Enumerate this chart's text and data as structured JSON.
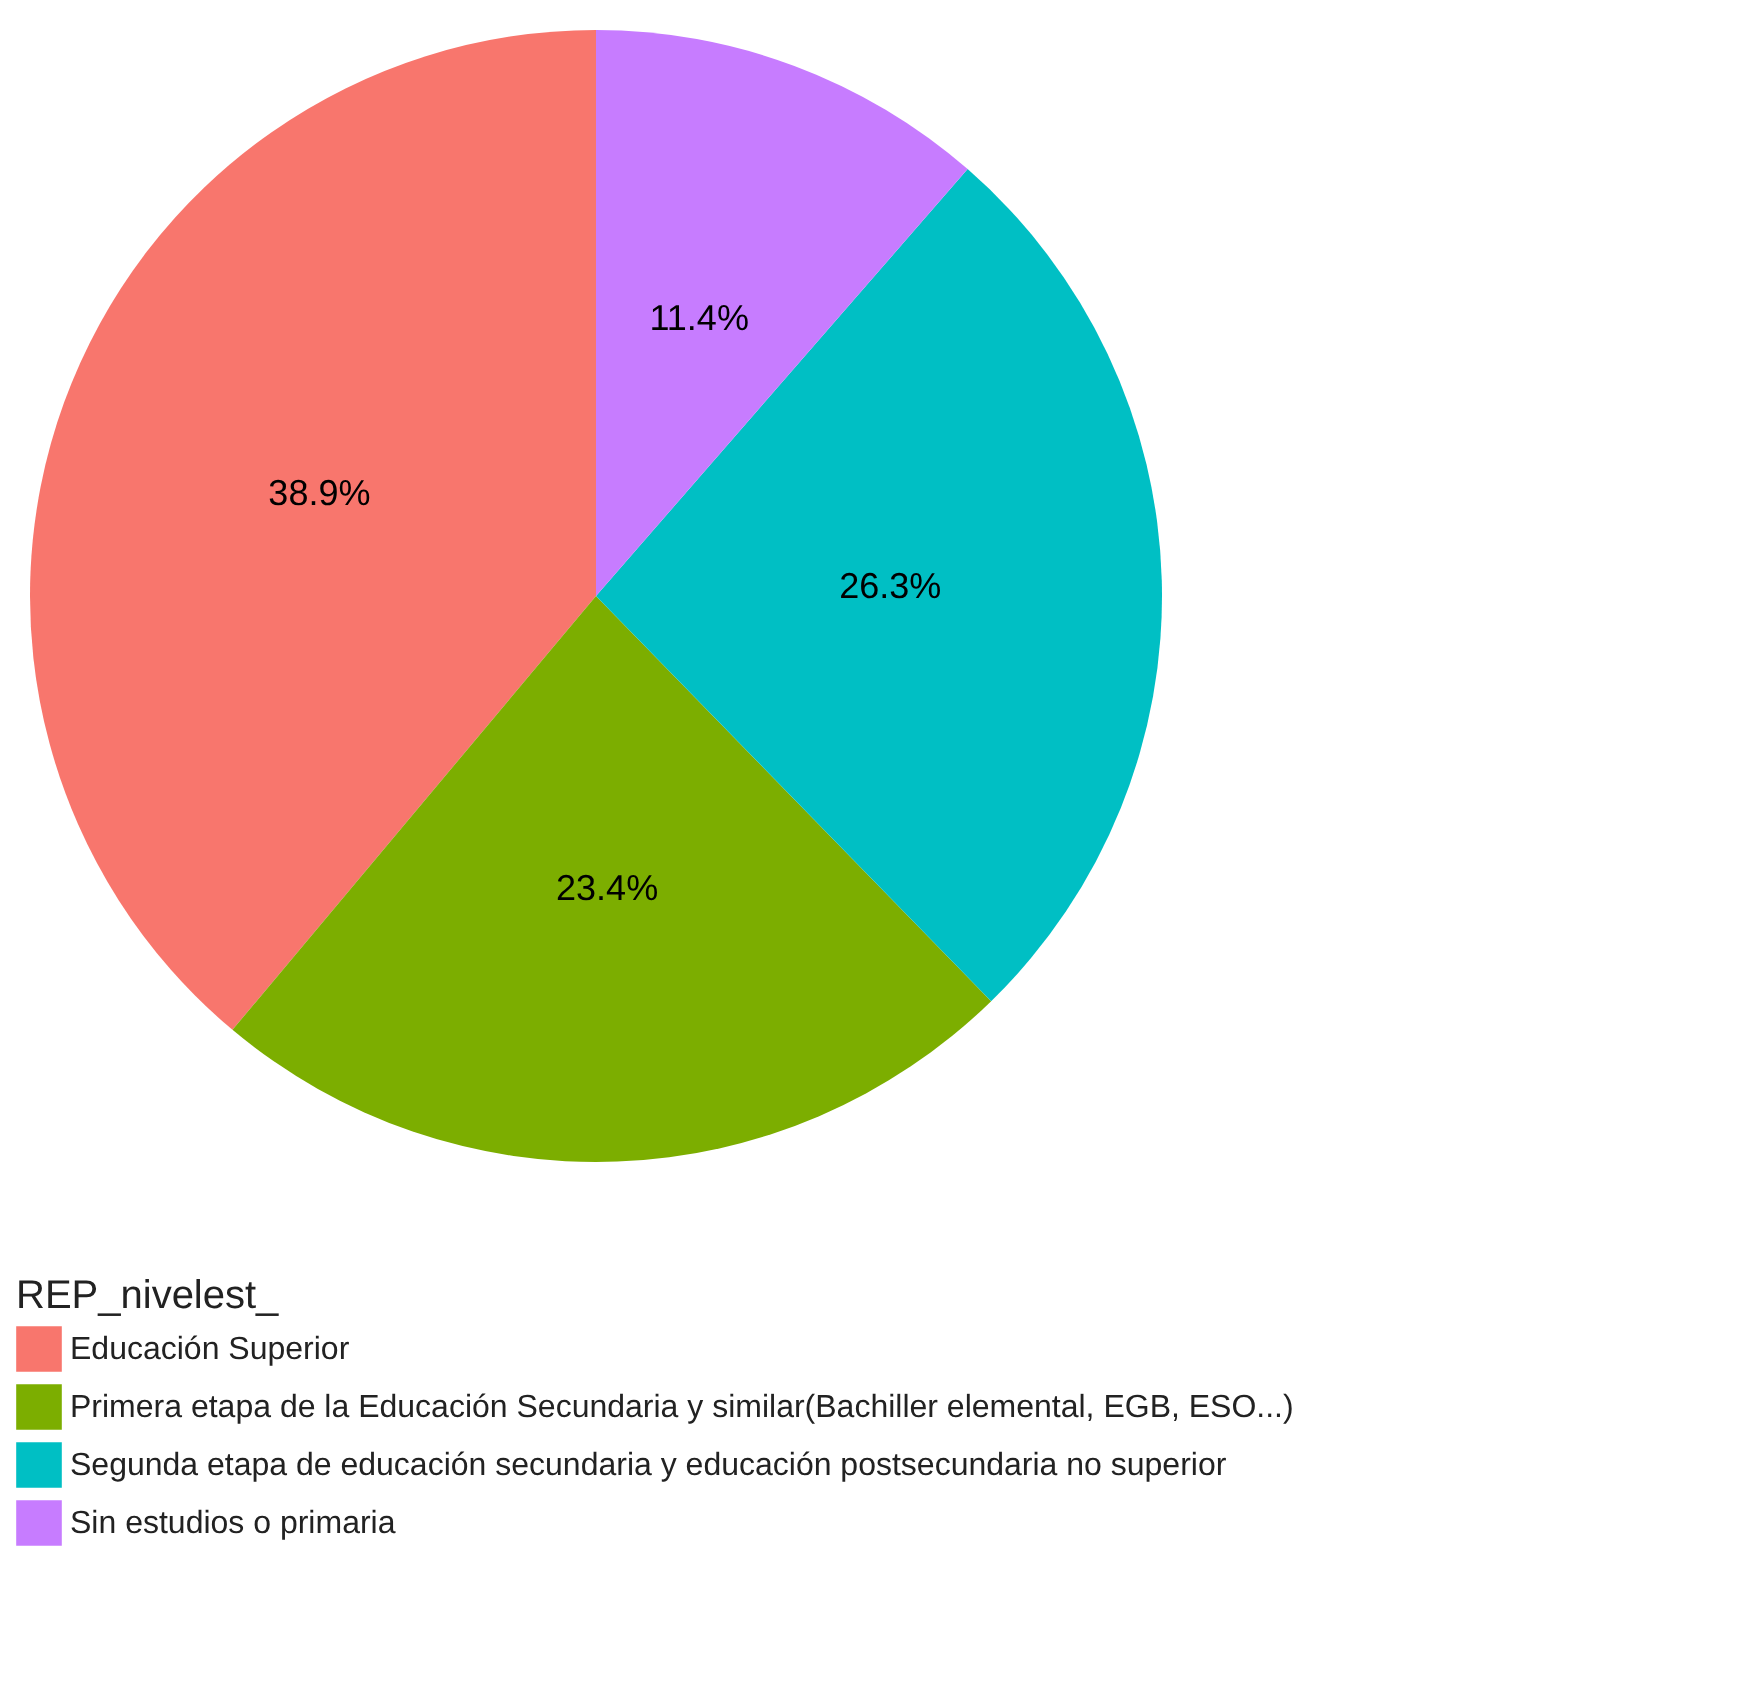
{
  "chart_data": {
    "type": "pie",
    "legend_title": "REP_nivelest_",
    "categories": [
      "Educación Superior",
      "Primera etapa de la Educación Secundaria y similar(Bachiller elemental, EGB, ESO...)",
      "Segunda etapa de educación secundaria y educación postsecundaria no superior",
      "Sin estudios o primaria"
    ],
    "values": [
      38.9,
      23.4,
      26.3,
      11.4
    ],
    "value_labels": [
      "38.9%",
      "23.4%",
      "26.3%",
      "11.4%"
    ],
    "colors": [
      "#f8766d",
      "#7cae00",
      "#00bfc4",
      "#c77cff"
    ],
    "legend": "bottom"
  }
}
